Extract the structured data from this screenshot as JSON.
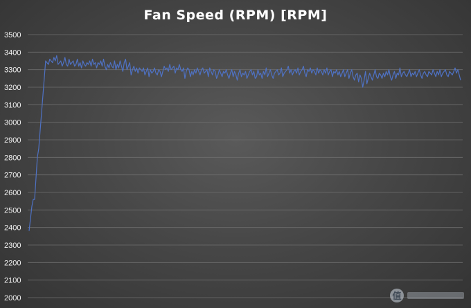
{
  "chart_data": {
    "type": "line",
    "title": "Fan Speed (RPM) [RPM]",
    "xlabel": "",
    "ylabel": "",
    "ylim": [
      2000,
      3500
    ],
    "y_ticks": [
      2000,
      2100,
      2200,
      2300,
      2400,
      2500,
      2600,
      2700,
      2800,
      2900,
      3000,
      3100,
      3200,
      3300,
      3400,
      3500
    ],
    "grid": true,
    "legend": "none",
    "line_color": "#4f72c4",
    "series": [
      {
        "values": [
          2380,
          2450,
          2520,
          2560,
          2560,
          2680,
          2800,
          2850,
          2950,
          3050,
          3150,
          3250,
          3350,
          3340,
          3330,
          3360,
          3350,
          3340,
          3370,
          3350,
          3380,
          3330,
          3340,
          3350,
          3320,
          3340,
          3370,
          3330,
          3320,
          3360,
          3330,
          3340,
          3350,
          3320,
          3330,
          3360,
          3320,
          3340,
          3310,
          3350,
          3330,
          3320,
          3340,
          3330,
          3350,
          3320,
          3360,
          3330,
          3340,
          3310,
          3340,
          3330,
          3350,
          3320,
          3360,
          3320,
          3300,
          3330,
          3310,
          3340,
          3320,
          3310,
          3350,
          3300,
          3330,
          3310,
          3350,
          3320,
          3290,
          3340,
          3360,
          3300,
          3320,
          3340,
          3270,
          3300,
          3320,
          3290,
          3310,
          3280,
          3310,
          3300,
          3290,
          3310,
          3270,
          3290,
          3310,
          3260,
          3300,
          3280,
          3290,
          3310,
          3280,
          3270,
          3300,
          3290,
          3260,
          3290,
          3320,
          3300,
          3310,
          3290,
          3330,
          3300,
          3310,
          3320,
          3280,
          3310,
          3300,
          3330,
          3300,
          3290,
          3310,
          3250,
          3290,
          3310,
          3300,
          3260,
          3290,
          3270,
          3300,
          3280,
          3310,
          3290,
          3270,
          3300,
          3310,
          3280,
          3290,
          3300,
          3260,
          3310,
          3290,
          3270,
          3300,
          3290,
          3250,
          3270,
          3300,
          3280,
          3260,
          3290,
          3280,
          3300,
          3270,
          3250,
          3280,
          3300,
          3260,
          3290,
          3270,
          3240,
          3280,
          3300,
          3260,
          3280,
          3270,
          3290,
          3250,
          3270,
          3290,
          3300,
          3270,
          3290,
          3250,
          3260,
          3300,
          3270,
          3280,
          3250,
          3290,
          3270,
          3310,
          3260,
          3280,
          3300,
          3270,
          3250,
          3280,
          3290,
          3300,
          3270,
          3280,
          3310,
          3260,
          3280,
          3290,
          3300,
          3320,
          3280,
          3300,
          3270,
          3290,
          3300,
          3280,
          3310,
          3270,
          3290,
          3300,
          3320,
          3280,
          3260,
          3300,
          3290,
          3310,
          3280,
          3300,
          3290,
          3270,
          3310,
          3280,
          3300,
          3290,
          3270,
          3300,
          3280,
          3310,
          3270,
          3290,
          3300,
          3260,
          3290,
          3280,
          3300,
          3270,
          3290,
          3260,
          3280,
          3300,
          3260,
          3280,
          3300,
          3250,
          3280,
          3300,
          3260,
          3240,
          3270,
          3280,
          3230,
          3270,
          3250,
          3200,
          3240,
          3290,
          3220,
          3250,
          3280,
          3260,
          3240,
          3270,
          3300,
          3260,
          3250,
          3280,
          3270,
          3250,
          3280,
          3260,
          3290,
          3270,
          3300,
          3260,
          3240,
          3270,
          3290,
          3250,
          3280,
          3270,
          3310,
          3260,
          3280,
          3290,
          3270,
          3260,
          3280,
          3300,
          3260,
          3280,
          3270,
          3290,
          3260,
          3280,
          3300,
          3270,
          3250,
          3280,
          3290,
          3270,
          3260,
          3290,
          3280,
          3270,
          3300,
          3280,
          3260,
          3290,
          3270,
          3300,
          3260,
          3280,
          3290,
          3300,
          3270,
          3260,
          3290,
          3280,
          3270,
          3290,
          3310,
          3280,
          3300,
          3270,
          3240
        ]
      }
    ]
  }
}
